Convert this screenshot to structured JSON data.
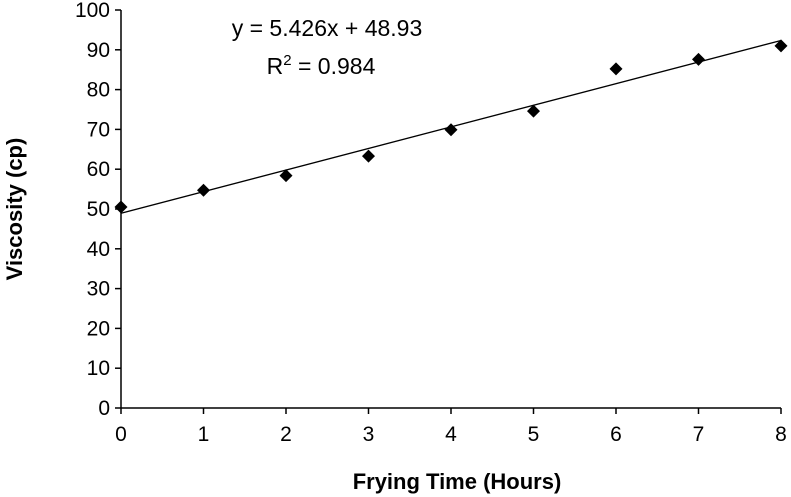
{
  "chart_data": {
    "type": "scatter",
    "title": "",
    "xlabel": "Frying Time (Hours)",
    "ylabel": "Viscosity (cp)",
    "xlim": [
      0,
      8
    ],
    "ylim": [
      0,
      100
    ],
    "x_ticks": [
      "0",
      "1",
      "2",
      "3",
      "4",
      "5",
      "6",
      "7",
      "8"
    ],
    "y_ticks": [
      "0",
      "10",
      "20",
      "30",
      "40",
      "50",
      "60",
      "70",
      "80",
      "90",
      "100"
    ],
    "grid": false,
    "legend": "none",
    "marker": "diamond",
    "marker_color": "#000000",
    "series": [
      {
        "x": [
          0,
          1,
          2,
          3,
          4,
          5,
          6,
          7,
          8
        ],
        "y": [
          50.5,
          54.7,
          58.4,
          63.3,
          69.9,
          74.6,
          85.2,
          87.6,
          91.0
        ]
      }
    ],
    "trendline": {
      "slope": 5.426,
      "intercept": 48.93,
      "equation_label": "y = 5.426x + 48.93",
      "r2_prefix": "R",
      "r2_sup": "2",
      "r2_value": " = 0.984"
    }
  }
}
